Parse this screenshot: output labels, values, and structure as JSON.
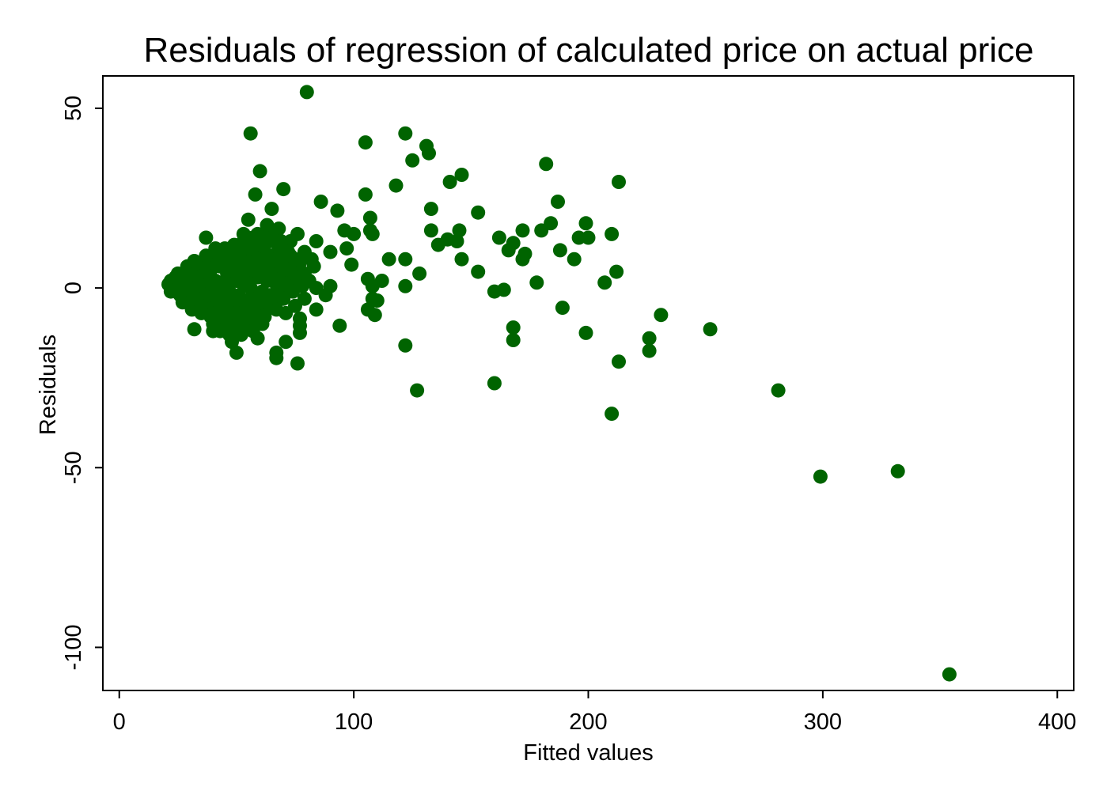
{
  "chart_data": {
    "type": "scatter",
    "title": "Residuals of regression of calculated price on actual price",
    "xlabel": "Fitted values",
    "ylabel": "Residuals",
    "xlim": [
      -7,
      407
    ],
    "ylim": [
      -112,
      59
    ],
    "xticks": [
      0,
      100,
      200,
      300,
      400
    ],
    "xtick_labels": [
      "0",
      "100",
      "200",
      "300",
      "400"
    ],
    "yticks": [
      50,
      0,
      -50,
      -100
    ],
    "ytick_labels": [
      "50",
      "0",
      "-50",
      "-100"
    ],
    "grid": false,
    "legend": "none",
    "marker_color": "#006400",
    "series": [
      {
        "points": [
          [
            80,
            54.5
          ],
          [
            56,
            43
          ],
          [
            105,
            40.5
          ],
          [
            122,
            43
          ],
          [
            131,
            39.5
          ],
          [
            132,
            37.5
          ],
          [
            125,
            35.5
          ],
          [
            60,
            32.5
          ],
          [
            146,
            31.5
          ],
          [
            141,
            29.5
          ],
          [
            213,
            29.5
          ],
          [
            70,
            27.5
          ],
          [
            118,
            28.5
          ],
          [
            58,
            26
          ],
          [
            105,
            26
          ],
          [
            182,
            34.5
          ],
          [
            86,
            24
          ],
          [
            187,
            24
          ],
          [
            65,
            22
          ],
          [
            93,
            21.5
          ],
          [
            133,
            22
          ],
          [
            153,
            21
          ],
          [
            55,
            19
          ],
          [
            107,
            19.5
          ],
          [
            63,
            17.5
          ],
          [
            68,
            16.5
          ],
          [
            184,
            18
          ],
          [
            199,
            18
          ],
          [
            96,
            16
          ],
          [
            107,
            16
          ],
          [
            133,
            16
          ],
          [
            145,
            16
          ],
          [
            172,
            16
          ],
          [
            180,
            16
          ],
          [
            53,
            15
          ],
          [
            59,
            15
          ],
          [
            64,
            15
          ],
          [
            76,
            15
          ],
          [
            100,
            15
          ],
          [
            108,
            15
          ],
          [
            162,
            14
          ],
          [
            196,
            14
          ],
          [
            200,
            14
          ],
          [
            210,
            15
          ],
          [
            37,
            14
          ],
          [
            73,
            13
          ],
          [
            84,
            13
          ],
          [
            140,
            13.5
          ],
          [
            144,
            13
          ],
          [
            168,
            12.5
          ],
          [
            41,
            11
          ],
          [
            48,
            11
          ],
          [
            97,
            11
          ],
          [
            136,
            12
          ],
          [
            188,
            10.5
          ],
          [
            166,
            10.5
          ],
          [
            173,
            9.5
          ],
          [
            90,
            10
          ],
          [
            79,
            10
          ],
          [
            115,
            8
          ],
          [
            122,
            8
          ],
          [
            146,
            8
          ],
          [
            172,
            8
          ],
          [
            194,
            8
          ],
          [
            32,
            7.5
          ],
          [
            43,
            8
          ],
          [
            69,
            7
          ],
          [
            82,
            8
          ],
          [
            99,
            6.5
          ],
          [
            128,
            4
          ],
          [
            153,
            4.5
          ],
          [
            212,
            4.5
          ],
          [
            178,
            1.5
          ],
          [
            207,
            1.5
          ],
          [
            106,
            2.5
          ],
          [
            112,
            2
          ],
          [
            108,
            0.5
          ],
          [
            122,
            0.5
          ],
          [
            90,
            0.5
          ],
          [
            78,
            0.5
          ],
          [
            84,
            0
          ],
          [
            160,
            -1
          ],
          [
            164,
            -0.5
          ],
          [
            88,
            -2
          ],
          [
            79,
            -3
          ],
          [
            108,
            -3
          ],
          [
            110,
            -3.5
          ],
          [
            84,
            -6
          ],
          [
            106,
            -6
          ],
          [
            109,
            -7.5
          ],
          [
            75,
            -5
          ],
          [
            67,
            -6
          ],
          [
            71,
            -7
          ],
          [
            189,
            -5.5
          ],
          [
            231,
            -7.5
          ],
          [
            252,
            -11.5
          ],
          [
            199,
            -12.5
          ],
          [
            168,
            -11
          ],
          [
            168,
            -14.5
          ],
          [
            226,
            -14
          ],
          [
            94,
            -10.5
          ],
          [
            77,
            -8.5
          ],
          [
            77,
            -10.5
          ],
          [
            77,
            -12.5
          ],
          [
            32,
            -11.5
          ],
          [
            40,
            -12
          ],
          [
            50,
            -11.5
          ],
          [
            52,
            -13
          ],
          [
            71,
            -15
          ],
          [
            67,
            -18
          ],
          [
            67,
            -19.5
          ],
          [
            76,
            -21
          ],
          [
            50,
            -18
          ],
          [
            48,
            -15
          ],
          [
            59,
            -14
          ],
          [
            61,
            -10
          ],
          [
            122,
            -16
          ],
          [
            213,
            -20.5
          ],
          [
            226,
            -17.5
          ],
          [
            127,
            -28.5
          ],
          [
            160,
            -26.5
          ],
          [
            210,
            -35
          ],
          [
            281,
            -28.5
          ],
          [
            299,
            -52.5
          ],
          [
            332,
            -51
          ],
          [
            354,
            -107.5
          ],
          [
            21,
            1
          ],
          [
            22,
            2
          ],
          [
            23,
            0
          ],
          [
            24,
            1.5
          ],
          [
            25,
            -1
          ],
          [
            26,
            2.5
          ],
          [
            27,
            0.5
          ],
          [
            28,
            -2
          ],
          [
            29,
            3
          ],
          [
            30,
            1
          ],
          [
            31,
            -3
          ],
          [
            32,
            2
          ],
          [
            33,
            0
          ],
          [
            34,
            4
          ],
          [
            35,
            -1
          ],
          [
            36,
            3
          ],
          [
            37,
            -4
          ],
          [
            38,
            1
          ],
          [
            39,
            5
          ],
          [
            40,
            -2
          ],
          [
            41,
            2
          ],
          [
            42,
            -5
          ],
          [
            43,
            6
          ],
          [
            44,
            0
          ],
          [
            45,
            -3
          ],
          [
            46,
            4
          ],
          [
            47,
            -1
          ],
          [
            48,
            7
          ],
          [
            49,
            -6
          ],
          [
            50,
            2
          ],
          [
            51,
            -2
          ],
          [
            52,
            8
          ],
          [
            53,
            1
          ],
          [
            54,
            -4
          ],
          [
            55,
            5
          ],
          [
            56,
            0
          ],
          [
            57,
            9
          ],
          [
            58,
            -3
          ],
          [
            59,
            3
          ],
          [
            60,
            6
          ],
          [
            61,
            -1
          ],
          [
            62,
            10
          ],
          [
            63,
            2
          ],
          [
            64,
            -2
          ],
          [
            65,
            7
          ],
          [
            66,
            4
          ],
          [
            67,
            1
          ],
          [
            68,
            11
          ],
          [
            69,
            3
          ],
          [
            70,
            8
          ],
          [
            71,
            0
          ],
          [
            72,
            5
          ],
          [
            73,
            9
          ],
          [
            74,
            2
          ],
          [
            75,
            6
          ],
          [
            76,
            3
          ],
          [
            77,
            7
          ],
          [
            79,
            4
          ],
          [
            81,
            2
          ],
          [
            83,
            6
          ],
          [
            22,
            -1
          ],
          [
            24,
            3
          ],
          [
            26,
            -2
          ],
          [
            28,
            4
          ],
          [
            30,
            -4
          ],
          [
            32,
            5
          ],
          [
            34,
            -5
          ],
          [
            36,
            6
          ],
          [
            38,
            -6
          ],
          [
            40,
            7
          ],
          [
            42,
            -7
          ],
          [
            44,
            8
          ],
          [
            46,
            -8
          ],
          [
            48,
            9
          ],
          [
            50,
            -9
          ],
          [
            52,
            10
          ],
          [
            54,
            -8
          ],
          [
            56,
            11
          ],
          [
            58,
            -7
          ],
          [
            60,
            12
          ],
          [
            62,
            -6
          ],
          [
            64,
            13
          ],
          [
            66,
            -4
          ],
          [
            68,
            12
          ],
          [
            70,
            -3
          ],
          [
            72,
            10
          ],
          [
            74,
            -1
          ],
          [
            25,
            4
          ],
          [
            27,
            -4
          ],
          [
            29,
            6
          ],
          [
            31,
            -6
          ],
          [
            33,
            7
          ],
          [
            35,
            -7
          ],
          [
            37,
            9
          ],
          [
            39,
            -8
          ],
          [
            41,
            10
          ],
          [
            43,
            -9
          ],
          [
            45,
            11
          ],
          [
            47,
            -10
          ],
          [
            49,
            12
          ],
          [
            51,
            -9
          ],
          [
            53,
            13
          ],
          [
            55,
            -8
          ],
          [
            57,
            14
          ],
          [
            59,
            -6
          ],
          [
            61,
            14
          ],
          [
            63,
            -5
          ],
          [
            65,
            14
          ],
          [
            67,
            -2
          ],
          [
            69,
            13
          ],
          [
            71,
            1
          ],
          [
            36,
            -2
          ],
          [
            38,
            2
          ],
          [
            42,
            1
          ],
          [
            44,
            -1
          ],
          [
            46,
            2
          ],
          [
            48,
            -2
          ],
          [
            50,
            4
          ],
          [
            52,
            -4
          ],
          [
            54,
            3
          ],
          [
            56,
            -3
          ],
          [
            58,
            5
          ],
          [
            60,
            -4
          ],
          [
            62,
            4
          ],
          [
            64,
            -3
          ],
          [
            66,
            6
          ],
          [
            30,
            3
          ],
          [
            34,
            1
          ],
          [
            28,
            1
          ],
          [
            26,
            0
          ],
          [
            24,
            -1
          ],
          [
            45,
            6
          ],
          [
            47,
            5
          ],
          [
            51,
            6
          ],
          [
            53,
            5
          ],
          [
            55,
            7
          ],
          [
            57,
            5
          ],
          [
            59,
            8
          ],
          [
            61,
            7
          ],
          [
            63,
            6
          ],
          [
            65,
            9
          ],
          [
            67,
            8
          ],
          [
            69,
            6
          ],
          [
            71,
            10
          ],
          [
            73,
            5
          ],
          [
            75,
            8
          ],
          [
            40,
            -10
          ],
          [
            44,
            -6
          ],
          [
            46,
            -4
          ],
          [
            48,
            -5
          ],
          [
            50,
            -7
          ],
          [
            54,
            -6
          ],
          [
            58,
            -9
          ],
          [
            62,
            -8
          ],
          [
            43,
            -12
          ],
          [
            47,
            -13
          ],
          [
            53,
            -11
          ],
          [
            57,
            -12
          ],
          [
            39,
            -7
          ],
          [
            35,
            -5
          ],
          [
            33,
            -3
          ],
          [
            31,
            -1
          ]
        ]
      }
    ]
  }
}
